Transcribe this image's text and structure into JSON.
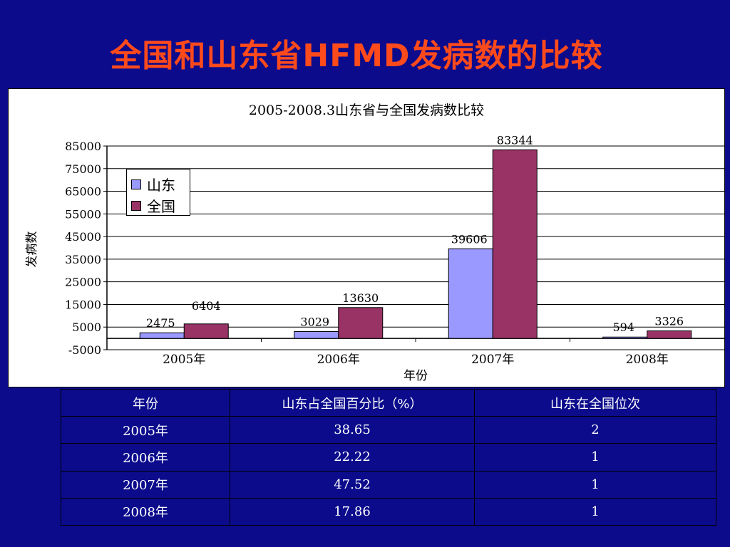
{
  "slide": {
    "title": "全国和山东省HFMD发病数的比较"
  },
  "chart_data": {
    "type": "bar",
    "title": "2005-2008.3山东省与全国发病数比较",
    "xlabel": "年份",
    "ylabel": "发病数",
    "categories": [
      "2005年",
      "2006年",
      "2007年",
      "2008年"
    ],
    "series": [
      {
        "name": "山东",
        "values": [
          2475,
          3029,
          39606,
          594
        ],
        "color": "#9999ff"
      },
      {
        "name": "全国",
        "values": [
          6404,
          13630,
          83344,
          3326
        ],
        "color": "#993366"
      }
    ],
    "yticks": [
      -5000,
      5000,
      15000,
      25000,
      35000,
      45000,
      55000,
      65000,
      75000,
      85000
    ],
    "ylim": [
      -5000,
      85000
    ],
    "grid": true,
    "legend": "top-left"
  },
  "table": {
    "headers": [
      "年份",
      "山东占全国百分比（%）",
      "山东在全国位次"
    ],
    "rows": [
      [
        "2005年",
        "38.65",
        "2"
      ],
      [
        "2006年",
        "22.22",
        "1"
      ],
      [
        "2007年",
        "47.52",
        "1"
      ],
      [
        "2008年",
        "17.86",
        "1"
      ]
    ]
  }
}
